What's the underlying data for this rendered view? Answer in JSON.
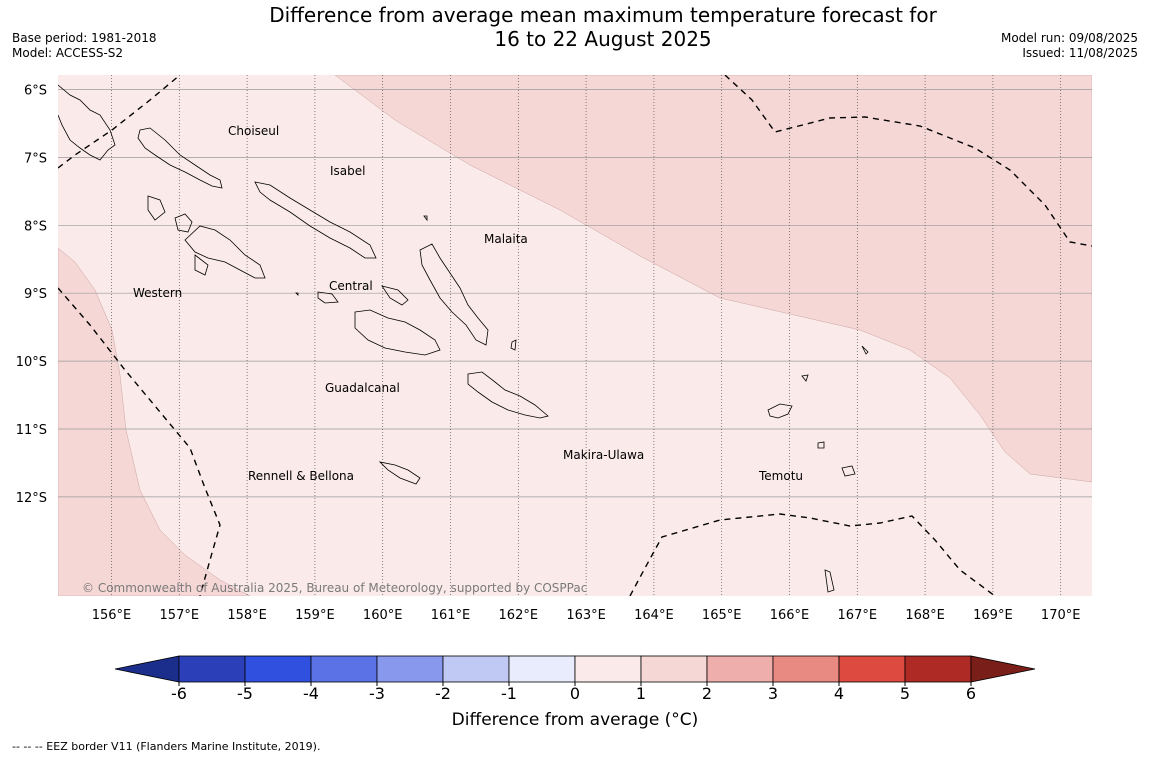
{
  "title": {
    "line1": "Difference from average mean maximum temperature forecast for",
    "line2": "16 to 22 August 2025"
  },
  "meta_left": {
    "base_period": "Base period: 1981-2018",
    "model": "Model: ACCESS-S2"
  },
  "meta_right": {
    "model_run": "Model run: 09/08/2025",
    "issued": "Issued: 11/08/2025"
  },
  "map": {
    "lat_labels": [
      "6°S",
      "7°S",
      "8°S",
      "9°S",
      "10°S",
      "11°S",
      "12°S"
    ],
    "lon_labels": [
      "156°E",
      "157°E",
      "158°E",
      "159°E",
      "160°E",
      "161°E",
      "162°E",
      "163°E",
      "164°E",
      "165°E",
      "166°E",
      "167°E",
      "168°E",
      "169°E",
      "170°E"
    ],
    "places": [
      "Choiseul",
      "Isabel",
      "Malaita",
      "Western",
      "Central",
      "Guadalcanal",
      "Makira-Ulawa",
      "Rennell & Bellona",
      "Temotu"
    ],
    "copyright": "© Commonwealth of Australia 2025, Bureau of Meteorology, supported by COSPPac",
    "colors": {
      "anomaly_0_1": "#fbeaea",
      "anomaly_1_2": "#f5d7d5"
    }
  },
  "colorbar": {
    "ticks": [
      "-6",
      "-5",
      "-4",
      "-3",
      "-2",
      "-1",
      "0",
      "1",
      "2",
      "3",
      "4",
      "5",
      "6"
    ],
    "colors": [
      "#1c2e8c",
      "#2b40b8",
      "#3050e0",
      "#5a72e6",
      "#8898ec",
      "#c0c8f4",
      "#e8ecfc",
      "#fbeaea",
      "#f5d7d5",
      "#eeaeab",
      "#e88a82",
      "#dd4a40",
      "#ae2a24",
      "#7a1e1a"
    ],
    "label": "Difference from average (°C)"
  },
  "footnote": "--  --  -- EEZ border V11 (Flanders Marine Institute, 2019)."
}
